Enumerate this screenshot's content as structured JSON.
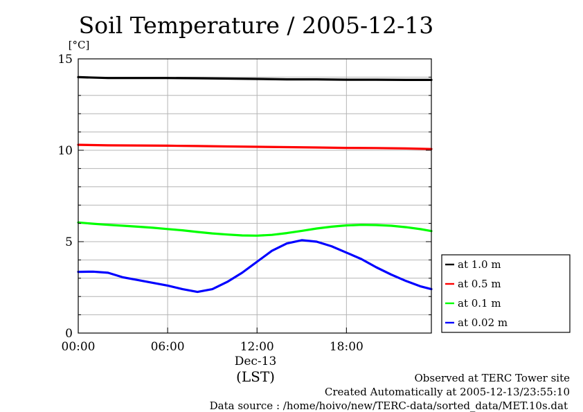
{
  "chart_data": {
    "type": "line",
    "title": "Soil Temperature / 2005-12-13",
    "ylabel": "[°C]",
    "xlabel": "(LST)",
    "date_label": "Dec-13",
    "xlim": [
      0,
      23.7
    ],
    "ylim": [
      0,
      15
    ],
    "yticks": [
      0,
      5,
      10,
      15
    ],
    "xticks": [
      {
        "hour": 0,
        "label": "00:00"
      },
      {
        "hour": 6,
        "label": "06:00"
      },
      {
        "hour": 12,
        "label": "12:00"
      },
      {
        "hour": 18,
        "label": "18:00"
      }
    ],
    "grid": true,
    "legend_position": "right",
    "series": [
      {
        "name": "at 1.0 m",
        "color": "#000000",
        "x": [
          0,
          2,
          4,
          6,
          8,
          10,
          12,
          14,
          16,
          18,
          20,
          22,
          23.7
        ],
        "y": [
          14.0,
          13.95,
          13.95,
          13.95,
          13.94,
          13.92,
          13.9,
          13.88,
          13.88,
          13.86,
          13.86,
          13.85,
          13.85
        ]
      },
      {
        "name": "at 0.5 m",
        "color": "#ff0000",
        "x": [
          0,
          2,
          4,
          6,
          8,
          10,
          12,
          14,
          16,
          18,
          20,
          22,
          23.7
        ],
        "y": [
          10.3,
          10.27,
          10.26,
          10.25,
          10.23,
          10.21,
          10.19,
          10.17,
          10.15,
          10.13,
          10.12,
          10.1,
          10.07
        ]
      },
      {
        "name": "at 0.1 m",
        "color": "#00ff00",
        "x": [
          0,
          1,
          2,
          3,
          4,
          5,
          6,
          7,
          8,
          9,
          10,
          11,
          12,
          13,
          14,
          15,
          16,
          17,
          18,
          19,
          20,
          21,
          22,
          23,
          23.7
        ],
        "y": [
          6.05,
          5.98,
          5.92,
          5.87,
          5.82,
          5.76,
          5.69,
          5.62,
          5.53,
          5.45,
          5.39,
          5.34,
          5.33,
          5.37,
          5.47,
          5.59,
          5.72,
          5.82,
          5.89,
          5.92,
          5.91,
          5.87,
          5.79,
          5.68,
          5.58
        ]
      },
      {
        "name": "at 0.02 m",
        "color": "#0000ff",
        "x": [
          0,
          1,
          2,
          3,
          4,
          5,
          6,
          7,
          8,
          9,
          10,
          11,
          12,
          13,
          14,
          15,
          16,
          17,
          18,
          19,
          20,
          21,
          22,
          23,
          23.7
        ],
        "y": [
          3.35,
          3.36,
          3.3,
          3.05,
          2.9,
          2.75,
          2.6,
          2.4,
          2.25,
          2.4,
          2.8,
          3.3,
          3.9,
          4.5,
          4.9,
          5.08,
          5.0,
          4.75,
          4.4,
          4.05,
          3.6,
          3.2,
          2.85,
          2.55,
          2.4
        ]
      }
    ]
  },
  "footer": {
    "line1": "Observed at TERC Tower site",
    "line2": "Created Automatically at 2005-12-13/23:55:10",
    "line3": "Data source : /home/hoivo/new/TERC-data/sorted_data/MET.10s.dat"
  }
}
